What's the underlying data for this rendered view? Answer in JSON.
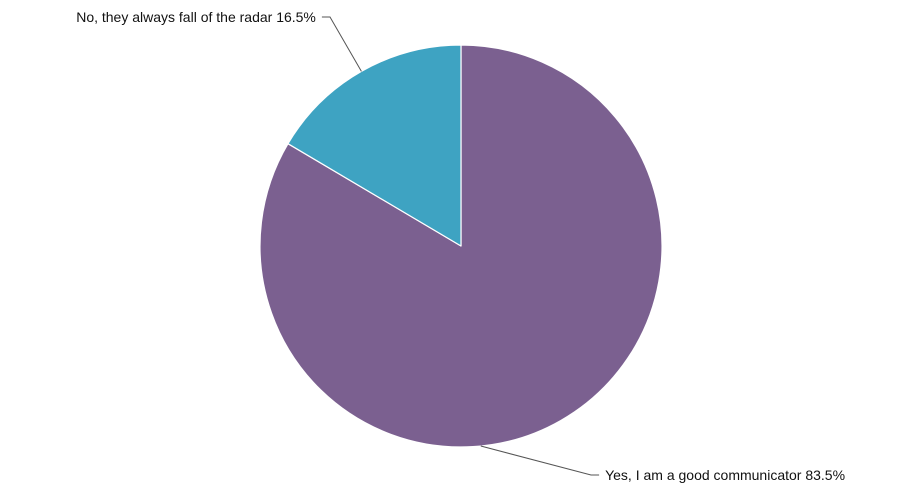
{
  "chart_data": {
    "type": "pie",
    "title": "",
    "slices": [
      {
        "label": "Yes, I am a good communicator",
        "value": 83.5,
        "display": "83.5%",
        "color": "#7b6090"
      },
      {
        "label": "No, they always fall of the radar",
        "value": 16.5,
        "display": "16.5%",
        "color": "#3ea3c2"
      }
    ],
    "start_angle": "12 o'clock",
    "direction": "clockwise",
    "legend": "none",
    "labels": "outside with leader lines"
  }
}
